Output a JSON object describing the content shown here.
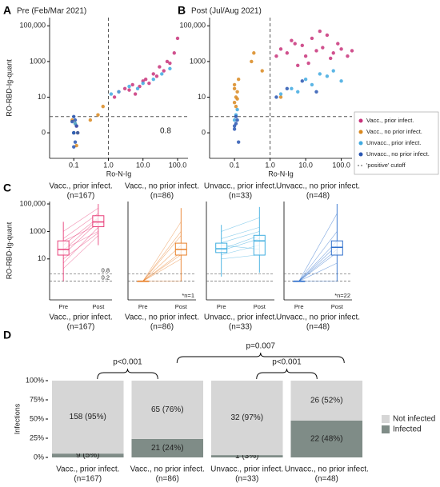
{
  "chart_data": [
    {
      "type": "scatter",
      "panel_label": "A",
      "title": "Pre (Feb/Mar 2021)",
      "x_label": "Ro-N-Ig",
      "y_label": "RO-RBD-Ig-quant",
      "xscale": "log",
      "yscale": "pseudo_log",
      "sigma": 0.1,
      "xlim": [
        0.02,
        200
      ],
      "ylim": [
        -2.7,
        290000
      ],
      "xticks": [
        0.1,
        {
          "value": 1,
          "label": "1.0"
        },
        {
          "value": 10,
          "label": "10.0"
        },
        {
          "value": 100,
          "label": "100.0"
        }
      ],
      "yticks": [
        0,
        10,
        1000,
        {
          "value": 100000,
          "label": "100,000"
        }
      ],
      "cutoffs": {
        "x": 1,
        "y": 0.8
      },
      "annotation": 0.8,
      "series": [
        {
          "color": "#c8327a",
          "x": [
            2,
            3,
            5,
            8,
            12,
            20,
            30,
            50,
            80,
            100,
            15,
            40,
            6,
            25,
            60,
            1.5,
            4,
            10,
            0.1,
            0.12
          ],
          "y": [
            20,
            30,
            50,
            40,
            100,
            200,
            500,
            1000,
            3000,
            20000,
            60,
            300,
            15,
            150,
            800,
            10,
            25,
            80,
            0,
            0.2
          ]
        },
        {
          "color": "#d9881e",
          "x": [
            0.1,
            0.11,
            0.12,
            0.09,
            0.13,
            0.5,
            0.7,
            0.3
          ],
          "y": [
            0,
            0.3,
            -0.5,
            0.5,
            0,
            1,
            3,
            0.5
          ]
        },
        {
          "color": "#3fa9e0",
          "x": [
            1.2,
            2,
            4,
            7,
            10,
            20,
            35,
            60,
            0.1,
            0.11
          ],
          "y": [
            15,
            20,
            40,
            30,
            60,
            100,
            200,
            400,
            0,
            0.3
          ]
        },
        {
          "color": "#2956b2",
          "x": [
            0.1,
            0.11,
            0.09,
            0.12,
            0.1,
            0.13,
            0.1,
            0.11
          ],
          "y": [
            0,
            -0.3,
            0.4,
            0.2,
            -0.6,
            0,
            0.8,
            0.5
          ]
        }
      ]
    },
    {
      "type": "scatter",
      "panel_label": "B",
      "title": "Post (Jul/Aug 2021)",
      "x_label": "Ro-N-Ig",
      "xscale": "log",
      "yscale": "pseudo_log",
      "sigma": 0.1,
      "xlim": [
        0.02,
        200
      ],
      "ylim": [
        -2.7,
        290000
      ],
      "xticks": [
        0.1,
        {
          "value": 1,
          "label": "1.0"
        },
        {
          "value": 10,
          "label": "10.0"
        },
        {
          "value": 100,
          "label": "100.0"
        }
      ],
      "yticks": [
        0,
        10,
        1000,
        {
          "value": 100000,
          "label": "100,000"
        }
      ],
      "cutoffs": {
        "x": 1,
        "y": 0.8
      },
      "legend": "right",
      "cutoff_label": "'positive' cutoff",
      "series": [
        {
          "name": "Vacc., prior infect.",
          "color": "#c8327a",
          "x": [
            1.5,
            2,
            3,
            5,
            8,
            10,
            15,
            20,
            30,
            40,
            60,
            80,
            100,
            150,
            4,
            12,
            25,
            50,
            200,
            6
          ],
          "y": [
            2000,
            5000,
            3000,
            10000,
            8000,
            2000,
            20000,
            4000,
            6000,
            30000,
            3000,
            10000,
            5000,
            2000,
            15000,
            800,
            50000,
            1500,
            4000,
            600
          ]
        },
        {
          "name": "Vacc., no prior infect.",
          "color": "#d9881e",
          "x": [
            0.1,
            0.11,
            0.12,
            0.1,
            0.13,
            0.11,
            0.1,
            0.12,
            0.3,
            0.35,
            0.6,
            2
          ],
          "y": [
            5,
            10,
            20,
            50,
            100,
            3,
            30,
            8,
            1000,
            3000,
            300,
            10
          ]
        },
        {
          "name": "Unvacc., prior infect.",
          "color": "#3fa9e0",
          "x": [
            2,
            4,
            6,
            10,
            15,
            25,
            40,
            60,
            100,
            0.1,
            0.11,
            0.12
          ],
          "y": [
            15,
            30,
            20,
            100,
            50,
            200,
            150,
            300,
            80,
            0.5,
            1,
            2
          ]
        },
        {
          "name": "Unvacc., no prior infect.",
          "color": "#2956b2",
          "x": [
            0.1,
            0.11,
            0.12,
            0.1,
            0.11,
            0.13,
            3,
            8,
            20,
            1.5
          ],
          "y": [
            0.1,
            0.3,
            0.5,
            0.2,
            0.8,
            -0.3,
            30,
            80,
            20,
            10
          ]
        }
      ]
    },
    {
      "type": "box",
      "panel_label": "C",
      "y_label": "RO-RBD-Ig-quant",
      "yscale": "pseudo_log",
      "sigma": 0.1,
      "ylim": [
        -0.94,
        150000
      ],
      "yticks": [
        10,
        1000,
        {
          "value": 100000,
          "label": "100,000"
        }
      ],
      "cutoffs": [
        0.8,
        0.2
      ],
      "categories": [
        "Pre",
        "Post"
      ],
      "groups": [
        {
          "title": "Vacc., prior infect.",
          "n_label": "(n=167)",
          "color": "#e8407a",
          "pre_box": [
            0.2,
            19,
            49,
            206,
            5000
          ],
          "post_box": [
            100,
            2200,
            4900,
            13900,
            100000
          ],
          "pre": [
            5,
            20,
            50,
            100,
            300,
            1000,
            10,
            200,
            2,
            40
          ],
          "post": [
            2000,
            5000,
            1000,
            10000,
            20000,
            50000,
            800,
            3000,
            500,
            8000
          ]
        },
        {
          "title": "Vacc., no prior infect.",
          "n_label": "(n=86)",
          "color": "#e8812b",
          "pre_box": [
            0.2,
            0.2,
            0.2,
            0.2,
            0.2
          ],
          "post_box": [
            0.2,
            19,
            49,
            140,
            50000
          ],
          "pre": [
            0.2,
            0.2,
            0.2,
            0.2,
            0.2,
            0.2,
            0.2,
            0.2
          ],
          "post": [
            10,
            30,
            100,
            500,
            5000,
            20,
            0.2,
            1000
          ],
          "note": "*n=1"
        },
        {
          "title": "Unvacc., prior infect.",
          "n_label": "(n=33)",
          "color": "#3faee0",
          "pre_box": [
            0.5,
            29,
            55,
            140,
            3000
          ],
          "post_box": [
            1,
            19,
            206,
            520,
            60000
          ],
          "pre": [
            20,
            50,
            100,
            300,
            1000,
            10,
            40,
            150
          ],
          "post": [
            100,
            500,
            50,
            2000,
            10000,
            20,
            300,
            1000
          ]
        },
        {
          "title": "Unvacc., no prior infect.",
          "n_label": "(n=48)",
          "color": "#2e6fcc",
          "pre_box": [
            0.2,
            0.2,
            0.2,
            0.2,
            0.2
          ],
          "post_box": [
            0.2,
            19,
            70,
            206,
            100000
          ],
          "pre": [
            0.2,
            0.2,
            0.2,
            0.2,
            0.2,
            0.2,
            0.2,
            0.2
          ],
          "post": [
            5,
            30,
            100,
            1000,
            20000,
            0.2,
            200,
            50
          ],
          "note": "*n=22"
        }
      ]
    },
    {
      "type": "bar",
      "panel_label": "D",
      "y_label": "Infections",
      "stacked": true,
      "legend": "right",
      "categories": [
        "Vacc., prior infect.",
        "Vacc., no prior infect.",
        "Unvacc., prior infect.",
        "Unvacc., no prior infect."
      ],
      "category_notes": [
        "(n=167)",
        "(n=86)",
        "(n=33)",
        "(n=48)"
      ],
      "ylim": [
        0,
        100
      ],
      "yticks": [
        {
          "value": 0,
          "label": "0%"
        },
        {
          "value": 25,
          "label": "25%"
        },
        {
          "value": 50,
          "label": "50%"
        },
        {
          "value": 75,
          "label": "75%"
        },
        {
          "value": 100,
          "label": "100%"
        }
      ],
      "series": [
        {
          "name": "Infected",
          "color": "#7f8c87",
          "values": [
            5,
            24,
            3,
            48
          ],
          "value_labels": [
            "9 (5%)",
            "21 (24%)",
            "1 (3%)",
            "22 (48%)"
          ]
        },
        {
          "name": "Not infected",
          "color": "#d6d6d6",
          "values": [
            95,
            76,
            97,
            52
          ],
          "value_labels": [
            "158 (95%)",
            "65 (76%)",
            "32 (97%)",
            "26 (52%)"
          ]
        }
      ],
      "comparisons": [
        {
          "between": [
            0,
            1
          ],
          "label": "p<0.001"
        },
        {
          "between": [
            1,
            3
          ],
          "label": "p=0.007"
        },
        {
          "between": [
            2,
            3
          ],
          "label": "p<0.001"
        }
      ]
    }
  ]
}
